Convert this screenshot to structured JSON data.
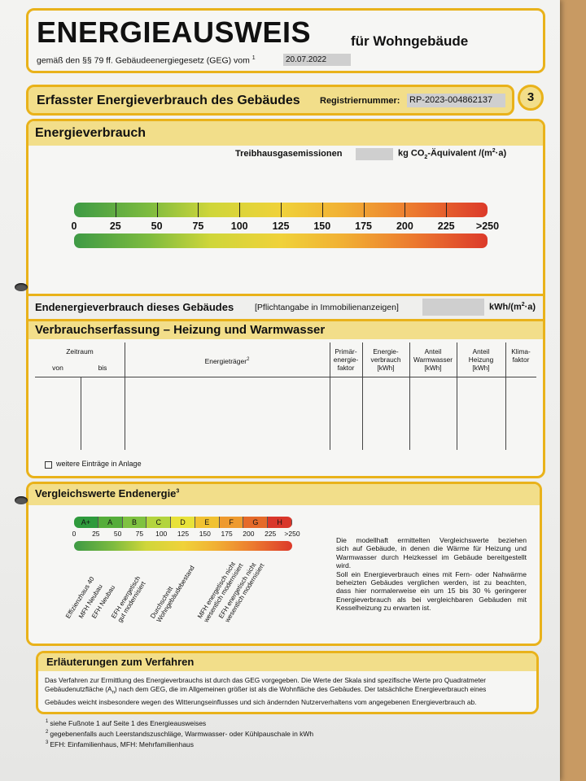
{
  "header": {
    "title": "ENERGIEAUSWEIS",
    "subtitle": "für Wohngebäude",
    "legal_prefix": "gemäß den §§ 79 ff. Gebäudeenergiegesetz (GEG) vom",
    "legal_sup": "1",
    "date": "20.07.2022"
  },
  "section_bar": {
    "title": "Erfasster Energieverbrauch des Gebäudes",
    "reg_label": "Registriernummer:",
    "reg_value": "RP-2023-004862137",
    "page_number": "3"
  },
  "energy": {
    "heading": "Energieverbrauch",
    "emissions_label": "Treibhausgasemissionen",
    "emissions_unit_a": "kg CO",
    "emissions_unit_sub": "2",
    "emissions_unit_b": "-Äquivalent /(m",
    "emissions_unit_sup": "2",
    "emissions_unit_c": "·a)",
    "scale_ticks": [
      "0",
      "25",
      "50",
      "75",
      "100",
      "125",
      "150",
      "175",
      "200",
      "225",
      ">250"
    ]
  },
  "end_energy": {
    "label": "Endenergieverbrauch dieses Gebäudes",
    "note": "[Pflichtangabe in Immobilienanzeigen]",
    "unit_a": "kWh/(m",
    "unit_sup": "2",
    "unit_b": "·a)"
  },
  "table": {
    "heading": "Verbrauchserfassung – Heizung und Warmwasser",
    "zeitraum": "Zeitraum",
    "von": "von",
    "bis": "bis",
    "energietraeger": "Energieträger",
    "energietraeger_sup": "2",
    "cols": [
      [
        "Primär-",
        "energie-",
        "faktor"
      ],
      [
        "Energie-",
        "verbrauch",
        "[kWh]"
      ],
      [
        "Anteil",
        "Warmwasser",
        "[kWh]"
      ],
      [
        "Anteil",
        "Heizung",
        "[kWh]"
      ],
      [
        "Klima-",
        "faktor"
      ]
    ],
    "more_entries": "weitere Einträge in Anlage"
  },
  "comparison": {
    "heading": "Vergleichswerte Endenergie",
    "heading_sup": "3",
    "classes": [
      "A+",
      "A",
      "B",
      "C",
      "D",
      "E",
      "F",
      "G",
      "H"
    ],
    "class_colors": [
      "#2e9a3c",
      "#55ad3a",
      "#7fc241",
      "#b3d43e",
      "#e8e23a",
      "#f1c232",
      "#ee9a2e",
      "#e56a2a",
      "#d9362a"
    ],
    "ticks": [
      "0",
      "25",
      "50",
      "75",
      "100",
      "125",
      "150",
      "175",
      "200",
      "225",
      ">250"
    ],
    "labels": [
      [
        "Effizienzhaus 40"
      ],
      [
        "MFH Neubau"
      ],
      [
        "EFH Neubau"
      ],
      [
        "EFH energetisch",
        "gut modernisiert"
      ],
      [
        "Durchschnitt",
        "Wohngebäudebestand"
      ],
      [
        "MFH energetisch nicht",
        "wesentlich modernisiert"
      ],
      [
        "EFH energetisch nicht",
        "wesentlich modernisiert"
      ]
    ],
    "description": [
      "Die modellhaft ermittelten Vergleichswerte beziehen",
      "sich auf Gebäude, in denen die Wärme für Heizung und",
      "Warmwasser durch Heizkessel im Gebäude bereitgestellt",
      "wird.",
      "Soll ein Energieverbrauch eines mit Fern- oder Nahwärme",
      "beheizten Gebäudes verglichen werden, ist zu beachten,",
      "dass hier normalerweise ein um 15 bis 30 % geringerer",
      "Energieverbrauch als bei vergleichbaren Gebäuden mit",
      "Kesselheizung zu erwarten ist."
    ]
  },
  "explanation": {
    "heading": "Erläuterungen zum Verfahren",
    "lines": [
      "Das Verfahren zur Ermittlung des Energieverbrauchs ist durch das GEG vorgegeben. Die Werte der Skala sind spezifische Werte pro Quadratmeter",
      "Gebäudenutzfläche (A",
      "n",
      ") nach dem GEG, die im Allgemeinen größer ist als die Wohnfläche des Gebäudes. Der tatsächliche Energieverbrauch eines",
      "Gebäudes weicht insbesondere wegen des Witterungseinflusses und sich ändernden Nutzerverhaltens vom angegebenen Energieverbrauch ab."
    ]
  },
  "footnotes": [
    {
      "n": "1",
      "text": "siehe Fußnote 1 auf Seite 1 des Energieausweises"
    },
    {
      "n": "2",
      "text": "gegebenenfalls auch Leerstandszuschläge, Warmwasser- oder Kühlpauschale in kWh"
    },
    {
      "n": "3",
      "text": "EFH: Einfamilienhaus, MFH: Mehrfamilienhaus"
    }
  ]
}
